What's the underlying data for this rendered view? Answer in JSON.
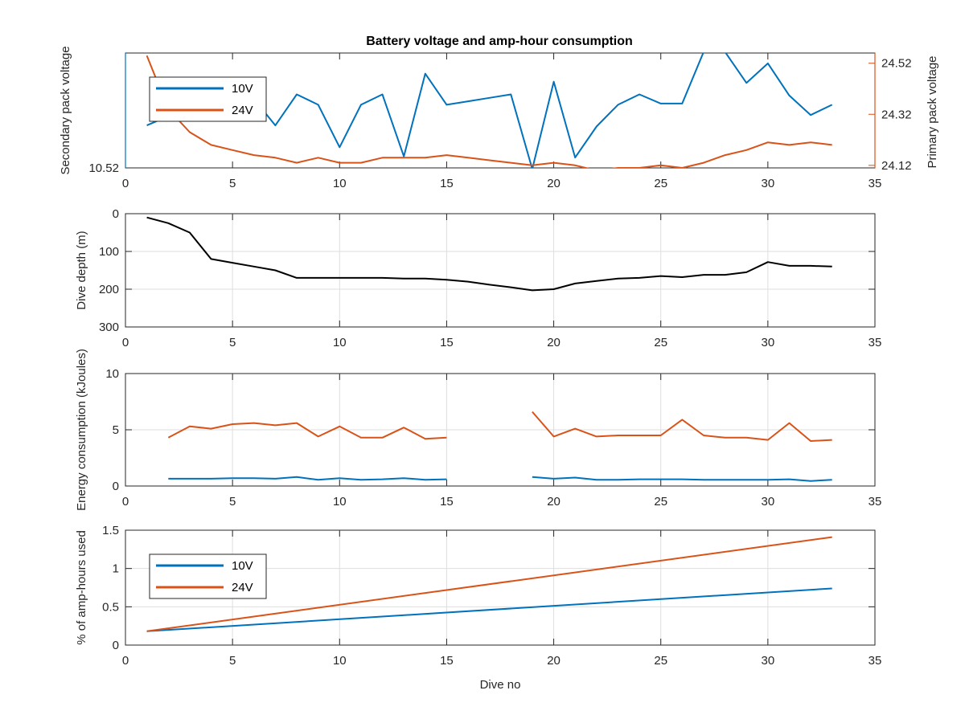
{
  "figure_title": "Battery voltage and amp-hour consumption",
  "colors": {
    "series_10V": "#0072BD",
    "series_24V": "#D95319",
    "depth": "#000000",
    "axis": "#262626",
    "grid": "#dedede"
  },
  "chart_data": [
    {
      "type": "line",
      "title": "Battery voltage and amp-hour consumption",
      "xlabel": "",
      "ylabel": "Secondary pack voltage",
      "ylabel_right": "Primary pack voltage",
      "xlim": [
        0,
        35
      ],
      "ylim_left": [
        10.52,
        10.62
      ],
      "ylim_right": [
        24.11,
        24.56
      ],
      "xticks": [
        0,
        5,
        10,
        15,
        20,
        25,
        30,
        35
      ],
      "yticks_left": [
        10.52
      ],
      "yticks_left_labels": [
        "10.52"
      ],
      "yticks_right": [
        24.12,
        24.32,
        24.52
      ],
      "yticks_right_labels": [
        "24.12",
        "24.32",
        "24.52"
      ],
      "grid": false,
      "legend_position": "top-left",
      "series": [
        {
          "name": "10V",
          "axis": "left",
          "x": [
            1,
            2,
            3,
            4,
            5,
            6,
            7,
            8,
            9,
            10,
            11,
            12,
            13,
            14,
            15,
            16,
            17,
            18,
            19,
            20,
            21,
            22,
            23,
            24,
            25,
            26,
            27,
            28,
            29,
            30,
            31,
            32,
            33
          ],
          "y": [
            10.557,
            10.565,
            10.575,
            10.582,
            10.586,
            10.58,
            10.557,
            10.584,
            10.575,
            10.538,
            10.575,
            10.584,
            10.53,
            10.602,
            10.575,
            10.578,
            10.581,
            10.584,
            10.519,
            10.595,
            10.529,
            10.556,
            10.575,
            10.584,
            10.576,
            10.576,
            10.621,
            10.621,
            10.594,
            10.611,
            10.583,
            10.566,
            10.575
          ]
        },
        {
          "name": "24V",
          "axis": "right",
          "x": [
            1,
            2,
            3,
            4,
            5,
            6,
            7,
            8,
            9,
            10,
            11,
            12,
            13,
            14,
            15,
            16,
            17,
            18,
            19,
            20,
            21,
            22,
            23,
            24,
            25,
            26,
            27,
            28,
            29,
            30,
            31,
            32,
            33
          ],
          "y": [
            24.55,
            24.34,
            24.25,
            24.2,
            24.18,
            24.16,
            24.15,
            24.13,
            24.15,
            24.13,
            24.13,
            24.15,
            24.15,
            24.15,
            24.16,
            24.15,
            24.14,
            24.13,
            24.12,
            24.13,
            24.12,
            24.1,
            24.11,
            24.11,
            24.12,
            24.11,
            24.13,
            24.16,
            24.18,
            24.21,
            24.2,
            24.21,
            24.2
          ]
        }
      ]
    },
    {
      "type": "line",
      "xlabel": "",
      "ylabel": "Dive depth (m)",
      "xlim": [
        0,
        35
      ],
      "ylim": [
        0,
        300
      ],
      "y_reversed": true,
      "xticks": [
        0,
        5,
        10,
        15,
        20,
        25,
        30,
        35
      ],
      "yticks": [
        0,
        100,
        200,
        300
      ],
      "yticks_labels": [
        "0",
        "100",
        "200",
        "300"
      ],
      "grid": true,
      "series": [
        {
          "x": [
            1,
            2,
            3,
            4,
            5,
            6,
            7,
            8,
            9,
            10,
            11,
            12,
            13,
            14,
            15,
            16,
            17,
            18,
            19,
            20,
            21,
            22,
            23,
            24,
            25,
            26,
            27,
            28,
            29,
            30,
            31,
            32,
            33
          ],
          "y": [
            10,
            25,
            50,
            120,
            130,
            140,
            150,
            170,
            170,
            170,
            170,
            170,
            172,
            172,
            175,
            180,
            188,
            195,
            203,
            200,
            185,
            178,
            172,
            170,
            165,
            168,
            162,
            162,
            155,
            128,
            138,
            138,
            140
          ]
        }
      ]
    },
    {
      "type": "line",
      "xlabel": "",
      "ylabel": "Energy consumption (kJoules)",
      "xlim": [
        0,
        35
      ],
      "ylim": [
        0,
        10
      ],
      "xticks": [
        0,
        5,
        10,
        15,
        20,
        25,
        30,
        35
      ],
      "yticks": [
        0,
        5,
        10
      ],
      "yticks_labels": [
        "0",
        "5",
        "10"
      ],
      "grid": true,
      "series": [
        {
          "axis": "left",
          "segments": [
            {
              "x": [
                2,
                3,
                4,
                5,
                6,
                7,
                8,
                9,
                10,
                11,
                12,
                13,
                14,
                15
              ],
              "y": [
                0.65,
                0.65,
                0.65,
                0.7,
                0.7,
                0.65,
                0.8,
                0.55,
                0.7,
                0.55,
                0.6,
                0.7,
                0.55,
                0.6
              ]
            },
            {
              "x": [
                19,
                20,
                21,
                22,
                23,
                24,
                25,
                26,
                27,
                28,
                29,
                30,
                31,
                32,
                33
              ],
              "y": [
                0.8,
                0.65,
                0.75,
                0.55,
                0.55,
                0.6,
                0.6,
                0.6,
                0.55,
                0.55,
                0.55,
                0.55,
                0.6,
                0.45,
                0.55
              ]
            }
          ]
        },
        {
          "axis": "left",
          "segments": [
            {
              "x": [
                2,
                3,
                4,
                5,
                6,
                7,
                8,
                9,
                10,
                11,
                12,
                13,
                14,
                15
              ],
              "y": [
                4.3,
                5.3,
                5.1,
                5.5,
                5.6,
                5.4,
                5.6,
                4.4,
                5.3,
                4.3,
                4.3,
                5.2,
                4.2,
                4.3
              ]
            },
            {
              "x": [
                19,
                20,
                21,
                22,
                23,
                24,
                25,
                26,
                27,
                28,
                29,
                30,
                31,
                32,
                33
              ],
              "y": [
                6.6,
                4.4,
                5.1,
                4.4,
                4.5,
                4.5,
                4.5,
                5.9,
                4.5,
                4.3,
                4.3,
                4.1,
                5.6,
                4.0,
                4.1
              ]
            }
          ]
        }
      ]
    },
    {
      "type": "line",
      "xlabel": "Dive no",
      "ylabel": "% of amp-hours used",
      "xlim": [
        0,
        35
      ],
      "ylim": [
        0,
        1.5
      ],
      "xticks": [
        0,
        5,
        10,
        15,
        20,
        25,
        30,
        35
      ],
      "yticks": [
        0,
        0.5,
        1,
        1.5
      ],
      "yticks_labels": [
        "0",
        "0.5",
        "1",
        "1.5"
      ],
      "grid": true,
      "legend_position": "top-left",
      "series": [
        {
          "name": "10V",
          "x": [
            1,
            33
          ],
          "y": [
            0.18,
            0.74
          ]
        },
        {
          "name": "24V",
          "x": [
            1,
            33
          ],
          "y": [
            0.18,
            1.41
          ]
        }
      ]
    }
  ]
}
